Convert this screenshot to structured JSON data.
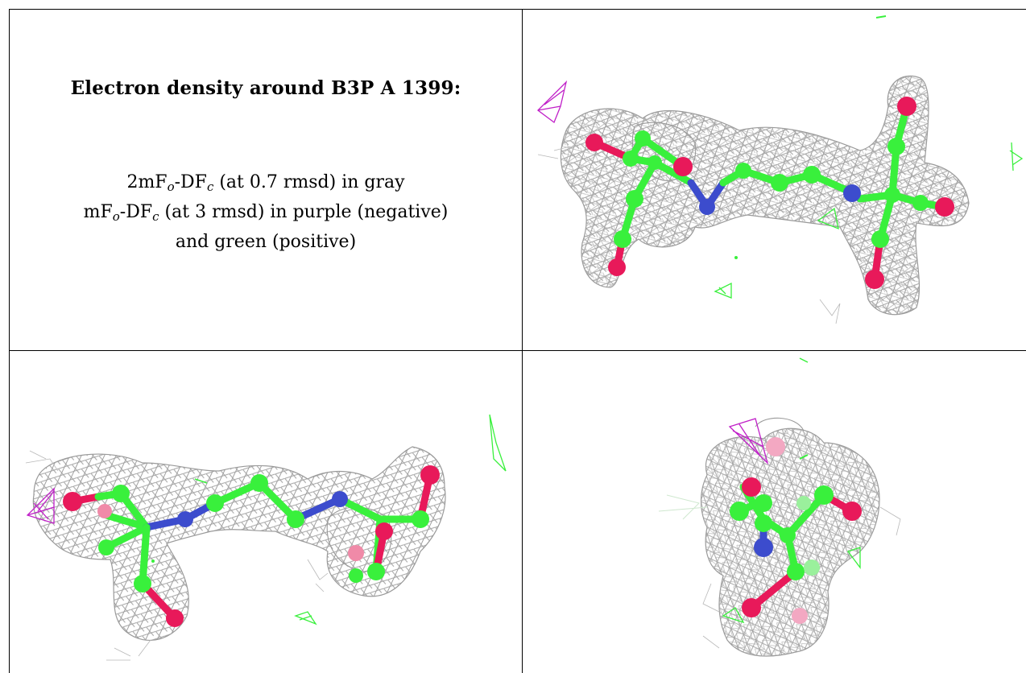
{
  "title": "Electron density around B3P A 1399:",
  "legend": {
    "line1": {
      "pre": "2mF",
      "sub1": "o",
      "mid": "-DF",
      "sub2": "c",
      "post": " (at 0.7 rmsd) in gray"
    },
    "line2": {
      "pre": "mF",
      "sub1": "o",
      "mid": "-DF",
      "sub2": "c",
      "post": " (at 3 rmsd) in purple (negative)"
    },
    "line3": "and green (positive)"
  },
  "colors": {
    "carbon": "#39f03c",
    "oxygen": "#e8195a",
    "nitrogen": "#3c4ccd",
    "mesh_2fofc": "#9a9a9a",
    "mesh_negative": "#c020c8",
    "mesh_positive": "#39f03c"
  }
}
